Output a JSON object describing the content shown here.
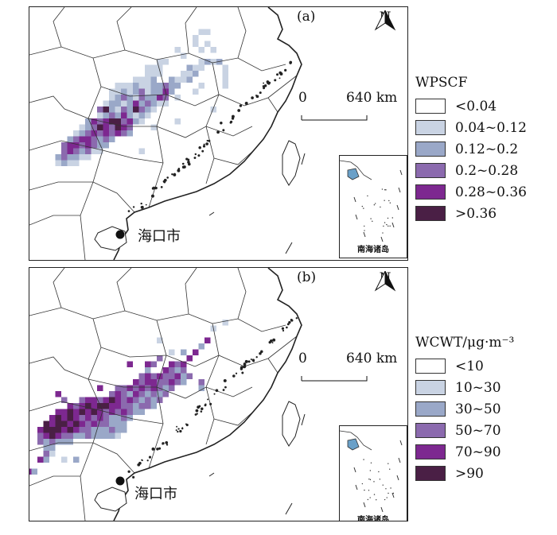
{
  "panels": [
    {
      "label": "(a)",
      "north": "N",
      "scale": {
        "zero": "0",
        "max": "640 km"
      },
      "city": "海口市",
      "inset_caption": "南海诸岛",
      "legend": {
        "title": "WPSCF",
        "items": [
          {
            "label": "<0.04",
            "color": "#ffffff"
          },
          {
            "label": "0.04~0.12",
            "color": "#c9d3e3"
          },
          {
            "label": "0.12~0.2",
            "color": "#9aa8c8"
          },
          {
            "label": "0.2~0.28",
            "color": "#8b6aae"
          },
          {
            "label": "0.28~0.36",
            "color": "#7d2890"
          },
          {
            "label": ">0.36",
            "color": "#4a1f45"
          }
        ]
      }
    },
    {
      "label": "(b)",
      "north": "N",
      "scale": {
        "zero": "0",
        "max": "640 km"
      },
      "city": "海口市",
      "inset_caption": "南海诸岛",
      "legend": {
        "title": "WCWT/μg·m⁻³",
        "items": [
          {
            "label": "<10",
            "color": "#ffffff"
          },
          {
            "label": "10~30",
            "color": "#c9d3e3"
          },
          {
            "label": "30~50",
            "color": "#9aa8c8"
          },
          {
            "label": "50~70",
            "color": "#8b6aae"
          },
          {
            "label": "70~90",
            "color": "#7d2890"
          },
          {
            "label": ">90",
            "color": "#4a1f45"
          }
        ]
      }
    }
  ]
}
